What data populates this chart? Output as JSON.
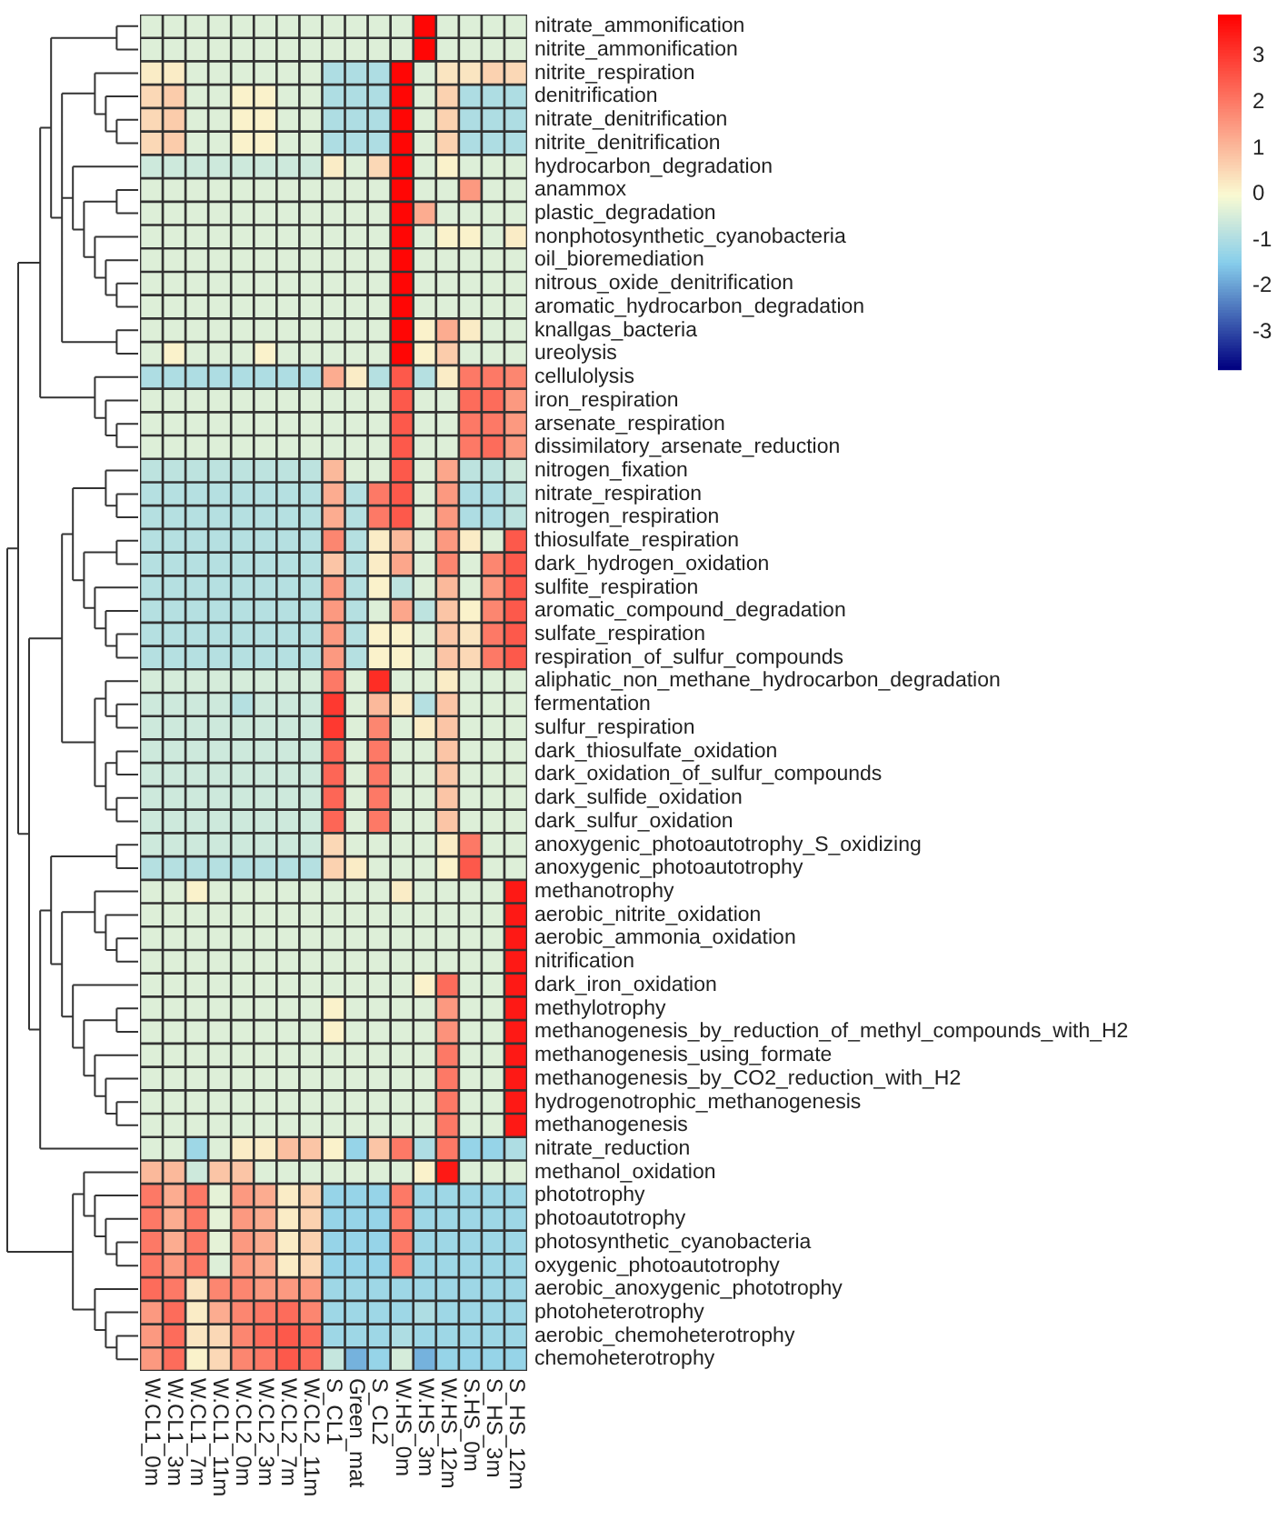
{
  "chart_data": {
    "type": "heatmap",
    "categories": [
      "W.CL1_0m",
      "W.CL1_3m",
      "W.CL1_7m",
      "W.CL1_11m",
      "W.CL2_0m",
      "W.CL2_3m",
      "W.CL2_7m",
      "W.CL2_11m",
      "S_CL1",
      "Green_mat",
      "S_CL2",
      "W.HS_0m",
      "W.HS_3m",
      "W.HS_12m",
      "S.HS_0m",
      "S_HS_3m",
      "S_HS_12m"
    ],
    "y_categories": [
      "nitrate_ammonification",
      "nitrite_ammonification",
      "nitrite_respiration",
      "denitrification",
      "nitrate_denitrification",
      "nitrite_denitrification",
      "hydrocarbon_degradation",
      "anammox",
      "plastic_degradation",
      "nonphotosynthetic_cyanobacteria",
      "oil_bioremediation",
      "nitrous_oxide_denitrification",
      "aromatic_hydrocarbon_degradation",
      "knallgas_bacteria",
      "ureolysis",
      "cellulolysis",
      "iron_respiration",
      "arsenate_respiration",
      "dissimilatory_arsenate_reduction",
      "nitrogen_fixation",
      "nitrate_respiration",
      "nitrogen_respiration",
      "thiosulfate_respiration",
      "dark_hydrogen_oxidation",
      "sulfite_respiration",
      "aromatic_compound_degradation",
      "sulfate_respiration",
      "respiration_of_sulfur_compounds",
      "aliphatic_non_methane_hydrocarbon_degradation",
      "fermentation",
      "sulfur_respiration",
      "dark_thiosulfate_oxidation",
      "dark_oxidation_of_sulfur_compounds",
      "dark_sulfide_oxidation",
      "dark_sulfur_oxidation",
      "anoxygenic_photoautotrophy_S_oxidizing",
      "anoxygenic_photoautotrophy",
      "methanotrophy",
      "aerobic_nitrite_oxidation",
      "aerobic_ammonia_oxidation",
      "nitrification",
      "dark_iron_oxidation",
      "methylotrophy",
      "methanogenesis_by_reduction_of_methyl_compounds_with_H2",
      "methanogenesis_using_formate",
      "methanogenesis_by_CO2_reduction_with_H2",
      "hydrogenotrophic_methanogenesis",
      "methanogenesis",
      "nitrate_reduction",
      "methanol_oxidation",
      "phototrophy",
      "photoautotrophy",
      "photosynthetic_cyanobacteria",
      "oxygenic_photoautotrophy",
      "aerobic_anoxygenic_phototrophy",
      "photoheterotrophy",
      "aerobic_chemoheterotrophy",
      "chemoheterotrophy"
    ],
    "cells": [
      [
        -0.4,
        -0.4,
        -0.4,
        -0.4,
        -0.4,
        -0.4,
        -0.4,
        -0.4,
        -0.4,
        -0.4,
        -0.4,
        -0.4,
        3.8,
        -0.4,
        -0.4,
        -0.4,
        -0.4
      ],
      [
        -0.4,
        -0.4,
        -0.4,
        -0.4,
        -0.4,
        -0.4,
        -0.4,
        -0.4,
        -0.4,
        -0.4,
        -0.4,
        -0.4,
        3.8,
        -0.4,
        -0.4,
        -0.4,
        -0.4
      ],
      [
        0.2,
        0.2,
        -0.4,
        -0.4,
        -0.4,
        -0.4,
        -0.4,
        -0.4,
        -1,
        -1,
        -1,
        3.8,
        -0.4,
        0.3,
        0.3,
        0.6,
        0.5
      ],
      [
        0.5,
        0.7,
        -0.4,
        -0.4,
        0.1,
        0.1,
        -0.4,
        -0.4,
        -1,
        -1,
        -1,
        3.8,
        -0.4,
        0.6,
        -1,
        -1,
        -1
      ],
      [
        0.5,
        0.7,
        -0.4,
        -0.4,
        0.1,
        0.1,
        -0.4,
        -0.4,
        -1,
        -1,
        -1,
        3.8,
        -0.4,
        0.6,
        -1,
        -1,
        -1
      ],
      [
        0.5,
        0.7,
        -0.4,
        -0.4,
        0.1,
        0.1,
        -0.4,
        -0.4,
        -1,
        -1,
        -1,
        3.8,
        -0.4,
        0.6,
        -1,
        -1,
        -1
      ],
      [
        -0.6,
        -0.6,
        -0.6,
        -0.6,
        -0.6,
        -0.6,
        -0.6,
        -0.6,
        0.2,
        -0.4,
        0.5,
        3.8,
        -0.4,
        0.1,
        -0.4,
        -0.4,
        -0.4
      ],
      [
        -0.4,
        -0.4,
        -0.4,
        -0.4,
        -0.4,
        -0.4,
        -0.4,
        -0.4,
        -0.4,
        -0.4,
        -0.4,
        3.8,
        -0.4,
        -0.4,
        1.5,
        -0.4,
        -0.4
      ],
      [
        -0.4,
        -0.4,
        -0.4,
        -0.4,
        -0.4,
        -0.4,
        -0.4,
        -0.4,
        -0.4,
        -0.4,
        -0.4,
        3.8,
        1.2,
        -0.4,
        -0.4,
        -0.4,
        -0.4
      ],
      [
        -0.4,
        -0.4,
        -0.4,
        -0.4,
        -0.4,
        -0.4,
        -0.4,
        -0.4,
        -0.4,
        -0.4,
        -0.4,
        3.8,
        -0.4,
        0.1,
        0.1,
        -0.4,
        0.2
      ],
      [
        -0.4,
        -0.4,
        -0.4,
        -0.4,
        -0.4,
        -0.4,
        -0.4,
        -0.4,
        -0.4,
        -0.4,
        -0.4,
        3.8,
        -0.4,
        -0.4,
        -0.4,
        -0.4,
        -0.4
      ],
      [
        -0.4,
        -0.4,
        -0.4,
        -0.4,
        -0.4,
        -0.4,
        -0.4,
        -0.4,
        -0.4,
        -0.4,
        -0.4,
        3.8,
        -0.4,
        -0.4,
        -0.4,
        -0.4,
        -0.4
      ],
      [
        -0.4,
        -0.4,
        -0.4,
        -0.4,
        -0.4,
        -0.4,
        -0.4,
        -0.4,
        -0.4,
        -0.4,
        -0.4,
        3.8,
        -0.4,
        -0.4,
        -0.4,
        -0.4,
        -0.4
      ],
      [
        -0.4,
        -0.4,
        -0.4,
        -0.4,
        -0.4,
        -0.4,
        -0.4,
        -0.4,
        -0.4,
        -0.4,
        -0.4,
        3.8,
        0.1,
        1.2,
        0.2,
        -0.4,
        -0.4
      ],
      [
        -0.4,
        0.1,
        -0.4,
        -0.4,
        -0.4,
        0.1,
        -0.4,
        -0.4,
        -0.4,
        -0.4,
        -0.4,
        3.8,
        0.1,
        0.7,
        -0.4,
        -0.4,
        -0.4
      ],
      [
        -1,
        -1,
        -1,
        -1,
        -1,
        -1,
        -1,
        -1,
        1.2,
        0.2,
        -0.9,
        2.5,
        -0.9,
        0.2,
        2,
        2,
        1.8
      ],
      [
        -0.4,
        -0.4,
        -0.4,
        -0.4,
        -0.4,
        -0.4,
        -0.4,
        -0.4,
        -0.4,
        -0.4,
        -0.4,
        2.5,
        -0.4,
        -0.4,
        2.2,
        2.2,
        1.5
      ],
      [
        -0.4,
        -0.4,
        -0.4,
        -0.4,
        -0.4,
        -0.4,
        -0.4,
        -0.4,
        -0.4,
        -0.4,
        -0.4,
        2.5,
        -0.4,
        -0.4,
        2,
        2,
        1.5
      ],
      [
        -0.4,
        -0.4,
        -0.4,
        -0.4,
        -0.4,
        -0.4,
        -0.4,
        -0.4,
        -0.4,
        -0.4,
        -0.4,
        2.5,
        -0.4,
        -0.4,
        2,
        2.2,
        1.5
      ],
      [
        -0.8,
        -0.8,
        -0.8,
        -0.8,
        -0.8,
        -0.8,
        -0.8,
        -0.8,
        1,
        -0.4,
        -0.4,
        2.5,
        -0.4,
        1.3,
        -0.8,
        -0.8,
        -0.6
      ],
      [
        -0.9,
        -0.9,
        -0.9,
        -0.9,
        -0.9,
        -0.9,
        -0.9,
        -0.9,
        1.2,
        -0.9,
        2,
        2.5,
        -0.4,
        1.5,
        -1,
        -1,
        -0.8
      ],
      [
        -0.9,
        -0.9,
        -0.9,
        -0.9,
        -0.9,
        -0.9,
        -0.9,
        -0.9,
        1.2,
        -0.9,
        2,
        2.5,
        -0.4,
        1.5,
        -1,
        -1,
        -0.8
      ],
      [
        -0.9,
        -0.9,
        -0.9,
        -0.9,
        -0.9,
        -0.9,
        -0.9,
        -0.9,
        1.8,
        -0.9,
        0.2,
        1,
        -0.4,
        1.5,
        0.2,
        -0.4,
        2.5
      ],
      [
        -0.9,
        -0.9,
        -0.9,
        -0.9,
        -0.9,
        -0.9,
        -0.9,
        -0.9,
        0.8,
        -0.9,
        0.2,
        1.3,
        -0.4,
        1.8,
        -0.4,
        1.8,
        2.5
      ],
      [
        -0.9,
        -0.9,
        -0.9,
        -0.9,
        -0.9,
        -0.9,
        -0.9,
        -0.9,
        1.5,
        -0.9,
        0.1,
        -0.8,
        -0.4,
        1,
        -0.4,
        1.5,
        2.5
      ],
      [
        -0.9,
        -0.9,
        -0.9,
        -0.9,
        -0.9,
        -0.9,
        -0.9,
        -0.9,
        1.5,
        -0.9,
        -0.4,
        1.3,
        -0.8,
        0.8,
        0.1,
        1.8,
        2.5
      ],
      [
        -0.9,
        -0.9,
        -0.9,
        -0.9,
        -0.9,
        -0.9,
        -0.9,
        -0.9,
        1.5,
        -0.9,
        0.1,
        0.1,
        -0.4,
        0.8,
        0.3,
        2,
        2.5
      ],
      [
        -0.9,
        -0.9,
        -0.9,
        -0.9,
        -0.9,
        -0.9,
        -0.9,
        -0.9,
        1.5,
        -0.9,
        0.1,
        0.1,
        -0.4,
        0.8,
        0.5,
        2,
        2.5
      ],
      [
        -0.5,
        -0.5,
        -0.5,
        -0.5,
        -0.5,
        -0.5,
        -0.5,
        -0.5,
        2,
        -0.4,
        3.2,
        -0.4,
        -0.4,
        0.2,
        -0.4,
        -0.4,
        -0.4
      ],
      [
        -0.6,
        -0.6,
        -0.6,
        -0.6,
        -0.9,
        -0.6,
        -0.6,
        -0.6,
        3,
        -0.4,
        1,
        0.2,
        -0.9,
        0.8,
        -0.4,
        -0.4,
        -0.4
      ],
      [
        -0.6,
        -0.6,
        -0.6,
        -0.6,
        -0.6,
        -0.6,
        -0.6,
        -0.6,
        3,
        -0.4,
        1.8,
        -0.4,
        0.2,
        0.8,
        -0.4,
        -0.4,
        -0.4
      ],
      [
        -0.6,
        -0.6,
        -0.6,
        -0.6,
        -0.6,
        -0.6,
        -0.6,
        -0.6,
        2.3,
        -0.4,
        2,
        -0.4,
        -0.4,
        0.8,
        -0.4,
        -0.4,
        -0.4
      ],
      [
        -0.6,
        -0.6,
        -0.6,
        -0.6,
        -0.6,
        -0.6,
        -0.6,
        -0.6,
        2.3,
        -0.4,
        2,
        -0.4,
        -0.4,
        0.8,
        -0.4,
        -0.4,
        -0.4
      ],
      [
        -0.6,
        -0.6,
        -0.6,
        -0.6,
        -0.6,
        -0.6,
        -0.6,
        -0.6,
        2.3,
        -0.4,
        2,
        -0.4,
        -0.4,
        0.8,
        -0.4,
        -0.4,
        -0.4
      ],
      [
        -0.6,
        -0.6,
        -0.6,
        -0.6,
        -0.6,
        -0.6,
        -0.6,
        -0.6,
        2.3,
        -0.4,
        2,
        -0.4,
        -0.4,
        0.8,
        -0.4,
        -0.4,
        -0.4
      ],
      [
        -0.6,
        -0.6,
        -0.6,
        -0.6,
        -0.6,
        -0.6,
        -0.6,
        -0.6,
        0.5,
        -0.4,
        -0.4,
        -0.4,
        -0.4,
        0.2,
        2,
        -0.4,
        -0.4
      ],
      [
        -0.9,
        -0.9,
        -0.9,
        -0.9,
        -0.9,
        -0.9,
        -0.9,
        -0.9,
        0.6,
        0.2,
        -0.4,
        -0.4,
        -0.4,
        0.1,
        2.5,
        -0.4,
        -0.4
      ],
      [
        -0.4,
        -0.4,
        0.1,
        -0.4,
        -0.4,
        -0.4,
        -0.4,
        -0.4,
        -0.4,
        -0.4,
        -0.4,
        0.2,
        -0.4,
        -0.4,
        -0.4,
        -0.4,
        3.5
      ],
      [
        -0.4,
        -0.4,
        -0.4,
        -0.4,
        -0.4,
        -0.4,
        -0.4,
        -0.4,
        -0.4,
        -0.4,
        -0.4,
        -0.4,
        -0.4,
        -0.4,
        -0.4,
        -0.4,
        3.5
      ],
      [
        -0.4,
        -0.4,
        -0.4,
        -0.4,
        -0.4,
        -0.4,
        -0.4,
        -0.4,
        -0.4,
        -0.4,
        -0.4,
        -0.4,
        -0.4,
        -0.4,
        -0.4,
        -0.4,
        3.5
      ],
      [
        -0.4,
        -0.4,
        -0.4,
        -0.4,
        -0.4,
        -0.4,
        -0.4,
        -0.4,
        -0.4,
        -0.4,
        -0.4,
        -0.4,
        -0.4,
        -0.4,
        -0.4,
        -0.4,
        3.5
      ],
      [
        -0.4,
        -0.4,
        -0.4,
        -0.4,
        -0.4,
        -0.4,
        -0.4,
        -0.4,
        -0.4,
        -0.4,
        -0.4,
        -0.4,
        0.1,
        2.2,
        -0.4,
        -0.4,
        3.5
      ],
      [
        -0.4,
        -0.4,
        -0.4,
        -0.4,
        -0.4,
        -0.4,
        -0.4,
        -0.4,
        0.1,
        -0.4,
        -0.4,
        -0.4,
        -0.4,
        1.5,
        -0.4,
        -0.4,
        3.5
      ],
      [
        -0.4,
        -0.4,
        -0.4,
        -0.4,
        -0.4,
        -0.4,
        -0.4,
        -0.4,
        0.1,
        -0.4,
        -0.4,
        -0.4,
        -0.4,
        1.6,
        -0.4,
        -0.4,
        3.5
      ],
      [
        -0.4,
        -0.4,
        -0.4,
        -0.4,
        -0.4,
        -0.4,
        -0.4,
        -0.4,
        -0.4,
        -0.4,
        -0.4,
        -0.4,
        -0.4,
        2,
        -0.4,
        -0.4,
        3.5
      ],
      [
        -0.4,
        -0.4,
        -0.4,
        -0.4,
        -0.4,
        -0.4,
        -0.4,
        -0.4,
        -0.4,
        -0.4,
        -0.4,
        -0.4,
        -0.4,
        2,
        -0.4,
        -0.4,
        3.5
      ],
      [
        -0.4,
        -0.4,
        -0.4,
        -0.4,
        -0.4,
        -0.4,
        -0.4,
        -0.4,
        -0.4,
        -0.4,
        -0.4,
        -0.4,
        -0.4,
        2,
        -0.4,
        -0.4,
        3.5
      ],
      [
        -0.4,
        -0.4,
        -0.4,
        -0.4,
        -0.4,
        -0.4,
        -0.4,
        -0.4,
        -0.4,
        -0.4,
        -0.4,
        -0.4,
        -0.4,
        2,
        -0.4,
        -0.4,
        3.5
      ],
      [
        -0.4,
        -0.4,
        -1.2,
        -0.4,
        0.2,
        0.2,
        0.9,
        0.8,
        0.1,
        -1.3,
        0.8,
        2,
        -1,
        2,
        -1.3,
        -1.3,
        -1
      ],
      [
        1,
        1,
        -0.6,
        0.8,
        0.8,
        -0.4,
        -0.4,
        -0.4,
        -0.4,
        -0.4,
        -0.4,
        -0.4,
        0.1,
        3.5,
        -0.4,
        -0.4,
        -0.4
      ],
      [
        2,
        1.2,
        2,
        -0.3,
        1.5,
        1.2,
        0.2,
        0.6,
        -1.3,
        -1.3,
        -1.3,
        2,
        -1.2,
        -1.2,
        -1.2,
        -1.2,
        -1.2
      ],
      [
        2,
        1.2,
        2,
        -0.3,
        1.5,
        1.2,
        0.2,
        0.6,
        -1.3,
        -1.3,
        -1.3,
        2,
        -1.2,
        -1.2,
        -1.2,
        -1.2,
        -1.2
      ],
      [
        2,
        1.2,
        2,
        -0.3,
        1.5,
        1.2,
        0.2,
        0.6,
        -1.3,
        -1.3,
        -1.3,
        2,
        -1.2,
        -1.2,
        -1.2,
        -1.2,
        -1.2
      ],
      [
        2,
        1.5,
        2,
        -0.4,
        1.5,
        1.2,
        0.2,
        0.5,
        -1.3,
        -1.3,
        -1.3,
        2,
        -1.2,
        -1.2,
        -1.2,
        -1.2,
        -1.2
      ],
      [
        2.2,
        2,
        0.3,
        1.8,
        1.8,
        1.5,
        1.5,
        1.5,
        -1.2,
        -1.2,
        -1.2,
        -1.2,
        -1.2,
        -1.2,
        -1.2,
        -1.2,
        -1.2
      ],
      [
        1.5,
        2.2,
        0.2,
        1.2,
        1.8,
        2,
        2.2,
        1.8,
        -1.2,
        -1.2,
        -1.2,
        -1.2,
        -1,
        -1.2,
        -1.2,
        -1.2,
        -1.2
      ],
      [
        1.5,
        2.2,
        0.3,
        0.5,
        1.8,
        2.2,
        2.5,
        2.2,
        -1.2,
        -1.2,
        -1.2,
        -1,
        -1.2,
        -1.2,
        -1.2,
        -1.2,
        -1.2
      ],
      [
        1.5,
        2.2,
        0.1,
        0.5,
        1.8,
        2,
        2.5,
        2.2,
        -0.7,
        -1.8,
        -1.3,
        -0.5,
        -1.8,
        -1.3,
        -1.3,
        -1.3,
        -1.3
      ]
    ],
    "clim": [
      -3.8,
      3.9
    ],
    "cticks": [
      -3,
      -2,
      -1,
      0,
      1,
      2,
      3
    ]
  }
}
